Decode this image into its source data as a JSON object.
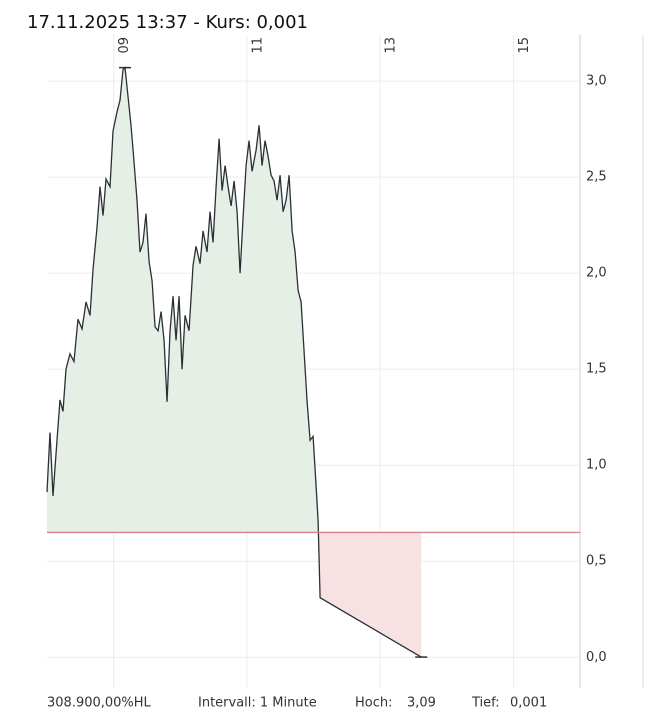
{
  "chart_data": {
    "type": "line",
    "title": "17.11.2025 13:37  -  Kurs: 0,001",
    "x": [
      8.0,
      8.045,
      8.09,
      8.15,
      8.195,
      8.24,
      8.285,
      8.345,
      8.405,
      8.465,
      8.526,
      8.586,
      8.646,
      8.691,
      8.751,
      8.796,
      8.841,
      8.886,
      8.946,
      8.991,
      9.051,
      9.096,
      9.141,
      9.171,
      9.216,
      9.261,
      9.306,
      9.351,
      9.396,
      9.441,
      9.486,
      9.532,
      9.577,
      9.622,
      9.667,
      9.712,
      9.757,
      9.802,
      9.847,
      9.892,
      9.937,
      9.982,
      10.027,
      10.072,
      10.132,
      10.192,
      10.237,
      10.297,
      10.342,
      10.402,
      10.447,
      10.492,
      10.538,
      10.583,
      10.628,
      10.673,
      10.718,
      10.763,
      10.808,
      10.853,
      10.898,
      10.943,
      10.988,
      11.033,
      11.078,
      11.138,
      11.183,
      11.228,
      11.273,
      11.318,
      11.363,
      11.408,
      11.453,
      11.498,
      11.544,
      11.589,
      11.634,
      11.679,
      11.724,
      11.769,
      11.814,
      11.859,
      11.904,
      11.949,
      11.994,
      12.039,
      12.069,
      12.099,
      13.617
    ],
    "series": [
      {
        "name": "Kurs",
        "color": "#2a3035",
        "values": [
          0.86,
          1.17,
          0.84,
          1.13,
          1.34,
          1.28,
          1.5,
          1.58,
          1.54,
          1.76,
          1.71,
          1.85,
          1.78,
          2.02,
          2.24,
          2.45,
          2.3,
          2.49,
          2.45,
          2.74,
          2.84,
          2.9,
          3.06,
          3.07,
          2.92,
          2.77,
          2.58,
          2.38,
          2.11,
          2.16,
          2.31,
          2.06,
          1.96,
          1.72,
          1.7,
          1.8,
          1.65,
          1.33,
          1.7,
          1.88,
          1.65,
          1.88,
          1.5,
          1.78,
          1.7,
          2.04,
          2.14,
          2.05,
          2.22,
          2.11,
          2.32,
          2.16,
          2.45,
          2.7,
          2.43,
          2.56,
          2.45,
          2.35,
          2.48,
          2.32,
          2.0,
          2.29,
          2.56,
          2.69,
          2.53,
          2.64,
          2.77,
          2.56,
          2.69,
          2.61,
          2.51,
          2.48,
          2.38,
          2.51,
          2.32,
          2.38,
          2.51,
          2.22,
          2.11,
          1.91,
          1.85,
          1.59,
          1.33,
          1.13,
          1.15,
          0.89,
          0.71,
          0.31,
          0.001
        ]
      }
    ],
    "reference_line": 0.65,
    "xlim": [
      8,
      16
    ],
    "xticks": [
      {
        "value": 9,
        "label": "09"
      },
      {
        "value": 11,
        "label": "11"
      },
      {
        "value": 13,
        "label": "13"
      },
      {
        "value": 15,
        "label": "15"
      }
    ],
    "ylim": [
      -0.16,
      3.24
    ],
    "yticks": [
      {
        "value": 0,
        "label": "0,0"
      },
      {
        "value": 0.5,
        "label": "0,5"
      },
      {
        "value": 1,
        "label": "1,0"
      },
      {
        "value": 1.5,
        "label": "1,5"
      },
      {
        "value": 2,
        "label": "2,0"
      },
      {
        "value": 2.5,
        "label": "2,5"
      },
      {
        "value": 3,
        "label": "3,0"
      }
    ],
    "grid": true,
    "footer": {
      "range": "308.900,00%HL",
      "interval": "Intervall: 1 Minute",
      "high_label": "Hoch:",
      "high": "3,09",
      "low_label": "Tief:",
      "low": "0,001"
    }
  }
}
